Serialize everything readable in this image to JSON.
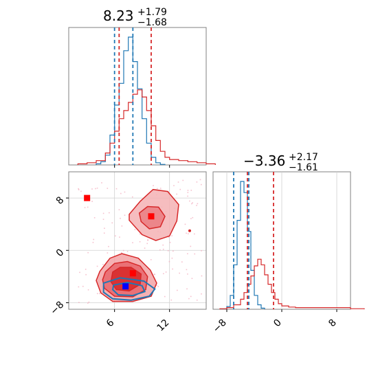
{
  "chart_data": [
    {
      "type": "histogram",
      "panel": "top-left",
      "title": {
        "value": "8.23",
        "plus": "+1.79",
        "minus": "−1.68"
      },
      "xlim": [
        1,
        16
      ],
      "quantiles": {
        "blue": [
          6.0,
          8.0
        ],
        "red": [
          6.5,
          10.0
        ]
      },
      "series": [
        {
          "color": "#1f77b4",
          "bins": [
            4.0,
            4.5,
            5.0,
            5.5,
            6.0,
            6.5,
            7.0,
            7.5,
            8.0,
            8.5,
            9.0,
            9.5,
            10.0,
            10.5,
            11.0
          ],
          "counts": [
            2,
            6,
            18,
            55,
            110,
            150,
            210,
            235,
            190,
            140,
            85,
            40,
            14,
            4,
            1
          ]
        },
        {
          "color": "#d62728",
          "bins": [
            2.0,
            3.0,
            4.0,
            5.0,
            5.5,
            6.0,
            6.5,
            7.0,
            7.5,
            8.0,
            8.5,
            9.0,
            9.5,
            10.0,
            10.5,
            11.0,
            11.5,
            12.0,
            13.0,
            14.0,
            15.0,
            16.0
          ],
          "counts": [
            2,
            4,
            8,
            22,
            40,
            62,
            85,
            100,
            115,
            130,
            138,
            125,
            100,
            72,
            45,
            25,
            14,
            10,
            8,
            6,
            4,
            2
          ]
        }
      ],
      "x_ticks": []
    },
    {
      "type": "histogram",
      "panel": "bottom-right",
      "title": {
        "value": "−3.36",
        "plus": "+2.17",
        "minus": "−1.61"
      },
      "xlim": [
        -10,
        10
      ],
      "quantiles": {
        "blue": [
          -7.0,
          -4.8
        ],
        "red": [
          -5.0,
          -1.2
        ]
      },
      "series": [
        {
          "color": "#1f77b4",
          "bins": [
            -8.0,
            -7.5,
            -7.0,
            -6.5,
            -6.0,
            -5.5,
            -5.0,
            -4.5,
            -4.0,
            -3.5,
            -3.0
          ],
          "counts": [
            5,
            25,
            80,
            160,
            230,
            210,
            140,
            70,
            25,
            8,
            2
          ]
        },
        {
          "color": "#d62728",
          "bins": [
            -9.0,
            -8.0,
            -7.0,
            -6.0,
            -5.5,
            -5.0,
            -4.5,
            -4.0,
            -3.5,
            -3.0,
            -2.5,
            -2.0,
            -1.5,
            -1.0,
            -0.5,
            0.0,
            1.0,
            2.0,
            4.0,
            6.0,
            8.0,
            10.0
          ],
          "counts": [
            1,
            3,
            8,
            18,
            30,
            45,
            60,
            78,
            90,
            80,
            62,
            45,
            30,
            18,
            10,
            6,
            4,
            3,
            3,
            3,
            3,
            1
          ]
        }
      ],
      "x_ticks": [
        {
          "value": -8,
          "label": "−8"
        },
        {
          "value": 0,
          "label": "0"
        },
        {
          "value": 8,
          "label": "8"
        }
      ]
    },
    {
      "type": "contour",
      "panel": "bottom-left",
      "xlim": [
        1,
        16
      ],
      "ylim": [
        -9,
        12
      ],
      "x_ticks": [
        {
          "value": 6,
          "label": "6"
        },
        {
          "value": 12,
          "label": "12"
        }
      ],
      "y_ticks": [
        {
          "value": 8,
          "label": "8"
        },
        {
          "value": 0,
          "label": "0"
        },
        {
          "value": -8,
          "label": "−8"
        }
      ],
      "red_markers": [
        {
          "x": 3.0,
          "y": 8.0
        },
        {
          "x": 10.0,
          "y": 5.2
        },
        {
          "x": 8.0,
          "y": -3.5
        }
      ],
      "blue_markers": [
        {
          "x": 7.2,
          "y": -5.5
        }
      ],
      "red_contours": [
        {
          "level": "outer",
          "points": [
            [
              4.4,
              -3.2
            ],
            [
              5.5,
              -1.2
            ],
            [
              6.8,
              -0.5
            ],
            [
              8.6,
              -1.2
            ],
            [
              9.9,
              -3.0
            ],
            [
              10.6,
              -5.0
            ],
            [
              10.0,
              -7.0
            ],
            [
              8.0,
              -7.8
            ],
            [
              5.8,
              -7.8
            ],
            [
              4.5,
              -6.5
            ],
            [
              4.0,
              -4.6
            ]
          ]
        },
        {
          "level": "mid",
          "points": [
            [
              5.0,
              -3.3
            ],
            [
              6.0,
              -2.0
            ],
            [
              7.4,
              -1.7
            ],
            [
              8.8,
              -2.4
            ],
            [
              9.6,
              -4.0
            ],
            [
              9.4,
              -6.0
            ],
            [
              8.0,
              -7.1
            ],
            [
              6.0,
              -7.0
            ],
            [
              4.9,
              -5.8
            ],
            [
              4.7,
              -4.5
            ]
          ]
        },
        {
          "level": "inner",
          "points": [
            [
              5.8,
              -3.3
            ],
            [
              6.6,
              -2.6
            ],
            [
              7.8,
              -2.6
            ],
            [
              8.9,
              -3.6
            ],
            [
              8.8,
              -5.2
            ],
            [
              7.6,
              -6.2
            ],
            [
              6.2,
              -6.0
            ],
            [
              5.6,
              -4.8
            ]
          ]
        },
        {
          "level": "upper-outer",
          "points": [
            [
              7.6,
              5.5
            ],
            [
              8.8,
              7.5
            ],
            [
              10.2,
              9.3
            ],
            [
              11.8,
              9.0
            ],
            [
              13.0,
              7.0
            ],
            [
              12.8,
              4.5
            ],
            [
              12.0,
              2.2
            ],
            [
              10.5,
              1.5
            ],
            [
              9.0,
              2.4
            ],
            [
              7.6,
              4.6
            ]
          ]
        },
        {
          "level": "upper-inner",
          "points": [
            [
              8.7,
              5.7
            ],
            [
              9.6,
              6.7
            ],
            [
              10.8,
              6.6
            ],
            [
              11.5,
              5.2
            ],
            [
              11.0,
              3.6
            ],
            [
              9.8,
              3.3
            ],
            [
              8.9,
              4.4
            ]
          ]
        }
      ],
      "blue_contours": [
        {
          "level": "outer",
          "points": [
            [
              4.8,
              -5.0
            ],
            [
              6.6,
              -4.2
            ],
            [
              9.2,
              -4.7
            ],
            [
              10.4,
              -5.9
            ],
            [
              9.8,
              -7.0
            ],
            [
              7.8,
              -7.6
            ],
            [
              5.8,
              -7.4
            ],
            [
              4.8,
              -6.4
            ]
          ]
        },
        {
          "level": "inner",
          "points": [
            [
              5.9,
              -5.3
            ],
            [
              7.4,
              -4.9
            ],
            [
              9.0,
              -5.4
            ],
            [
              9.3,
              -6.3
            ],
            [
              8.0,
              -6.9
            ],
            [
              6.4,
              -6.8
            ],
            [
              5.8,
              -6.0
            ]
          ]
        }
      ]
    }
  ]
}
